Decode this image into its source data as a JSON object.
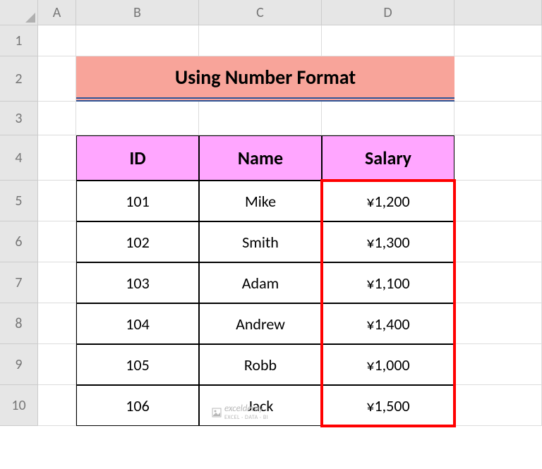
{
  "columns": {
    "labels": [
      "A",
      "B",
      "C",
      "D",
      ""
    ],
    "widths": [
      54,
      174,
      174,
      188,
      124
    ]
  },
  "rows": {
    "labels": [
      "1",
      "2",
      "3",
      "4",
      "5",
      "6",
      "7",
      "8",
      "9",
      "10"
    ],
    "heights": [
      44,
      64,
      48,
      64,
      58,
      58,
      58,
      58,
      58,
      58
    ]
  },
  "title": {
    "text": "Using Number Format",
    "bg": "#f8a49a",
    "underline": "#2f5597",
    "fontsize": 28
  },
  "table": {
    "header_bg": "#ffa6ff",
    "headers": [
      "ID",
      "Name",
      "Salary"
    ],
    "rows": [
      [
        "101",
        "Mike",
        "¥1,200"
      ],
      [
        "102",
        "Smith",
        "¥1,300"
      ],
      [
        "103",
        "Adam",
        "¥1,100"
      ],
      [
        "104",
        "Andrew",
        "¥1,400"
      ],
      [
        "105",
        "Robb",
        "¥1,000"
      ],
      [
        "106",
        "Jack",
        "¥1,500"
      ]
    ]
  },
  "highlight": {
    "color": "#ff0000",
    "col": 3,
    "row_start": 4,
    "row_end": 9
  },
  "watermark": {
    "brand": "exceldemy",
    "sub": "EXCEL · DATA · BI"
  },
  "colors": {
    "header_bg": "#e6e6e6",
    "header_border": "#cccccc",
    "header_text": "#777777",
    "grid_line": "#dcdcdc"
  }
}
